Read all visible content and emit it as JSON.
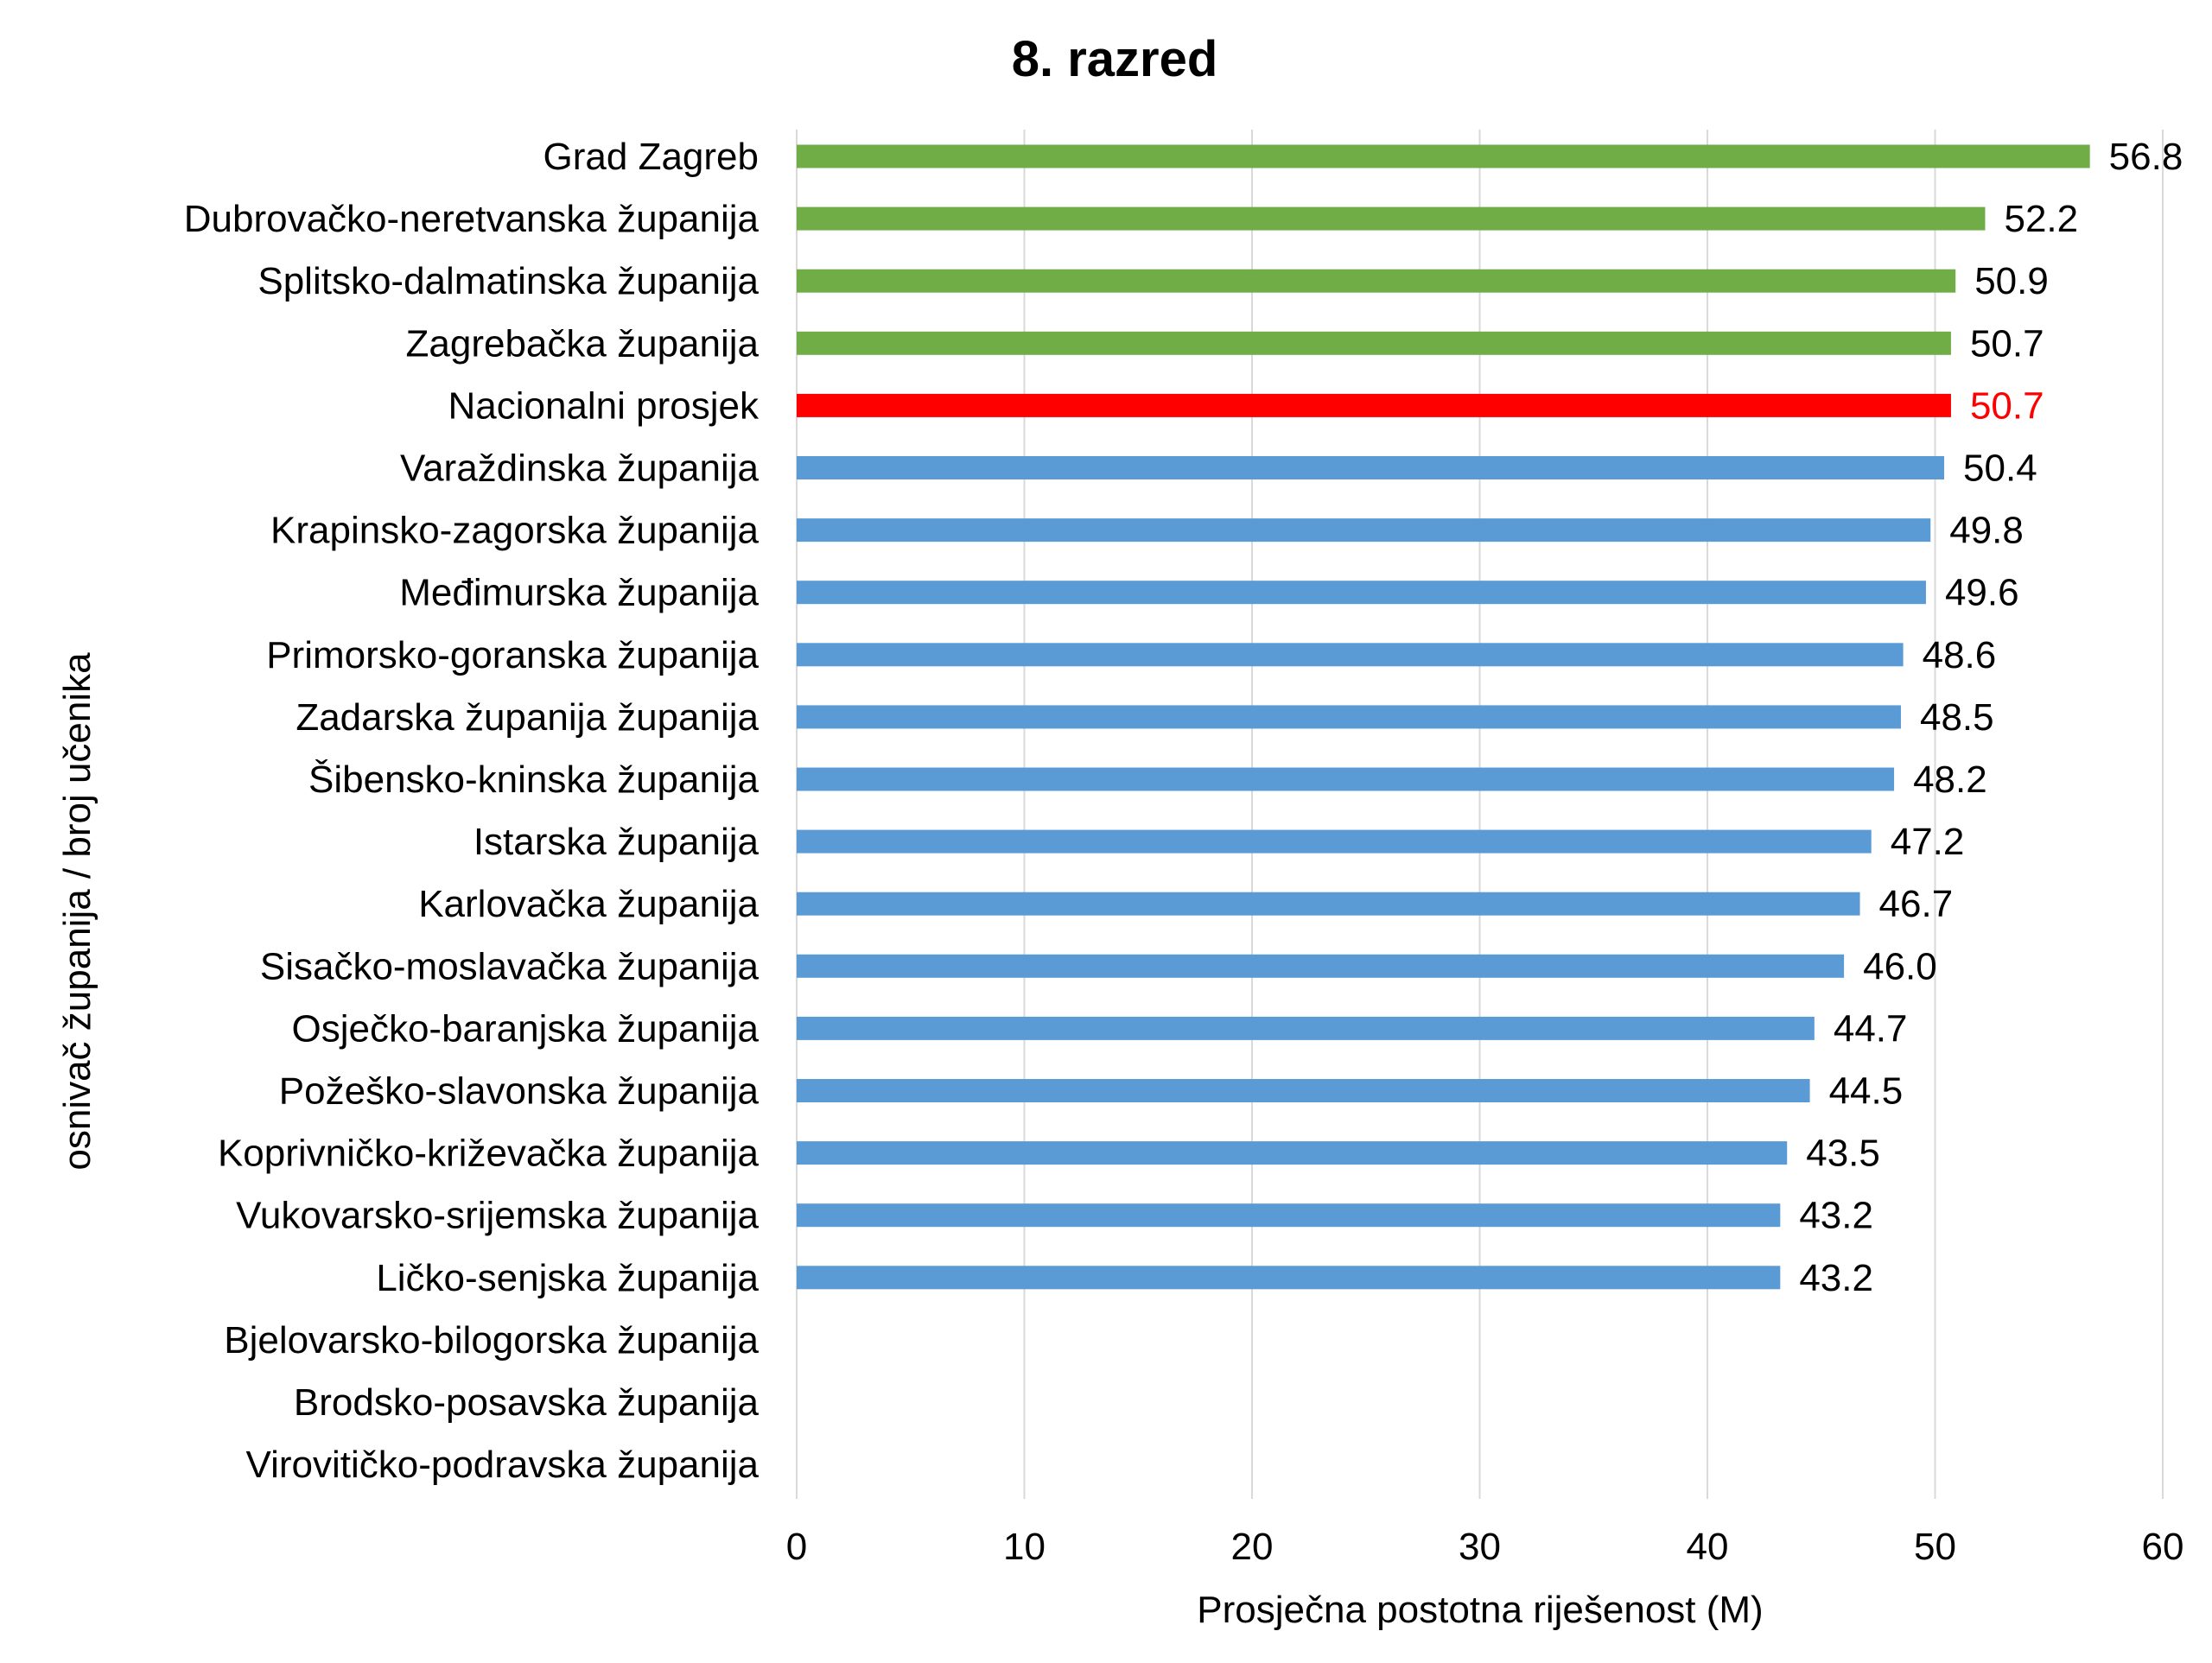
{
  "chart_data": {
    "type": "bar",
    "orientation": "horizontal",
    "title": "8. razred",
    "xlabel": "Prosječna postotna riješenost (M)",
    "ylabel": "osnivač županija / broj učenika",
    "xlim": [
      0,
      60
    ],
    "xticks": [
      0,
      10,
      20,
      30,
      40,
      50,
      60
    ],
    "grid": "vertical",
    "colors": {
      "green": "#70AD47",
      "red": "#FF0000",
      "blue": "#5B9BD5",
      "label_default": "#000000",
      "label_red": "#FF0000",
      "grid": "#D9D9D9"
    },
    "categories": [
      "Grad Zagreb",
      "Dubrovačko-neretvanska županija",
      "Splitsko-dalmatinska županija",
      "Zagrebačka županija",
      "Nacionalni prosjek",
      "Varaždinska županija",
      "Krapinsko-zagorska županija",
      "Međimurska županija",
      "Primorsko-goranska županija",
      "Zadarska županija županija",
      "Šibensko-kninska županija",
      "Istarska županija",
      "Karlovačka županija",
      "Sisačko-moslavačka županija",
      "Osječko-baranjska županija",
      "Požeško-slavonska županija",
      "Koprivničko-križevačka županija",
      "Vukovarsko-srijemska županija",
      "Ličko-senjska županija",
      "Bjelovarsko-bilogorska županija",
      "Brodsko-posavska županija",
      "Virovitičko-podravska županija"
    ],
    "values": [
      56.8,
      52.2,
      50.9,
      50.7,
      50.7,
      50.4,
      49.8,
      49.6,
      48.6,
      48.5,
      48.2,
      47.2,
      46.7,
      46.0,
      44.7,
      44.5,
      43.5,
      43.2,
      43.2,
      null,
      null,
      null
    ],
    "value_labels": [
      "56.8",
      "52.2",
      "50.9",
      "50.7",
      "50.7",
      "50.4",
      "49.8",
      "49.6",
      "48.6",
      "48.5",
      "48.2",
      "47.2",
      "46.7",
      "46.0",
      "44.7",
      "44.5",
      "43.5",
      "43.2",
      "43.2",
      "",
      "",
      ""
    ],
    "bar_colors": [
      "green",
      "green",
      "green",
      "green",
      "red",
      "blue",
      "blue",
      "blue",
      "blue",
      "blue",
      "blue",
      "blue",
      "blue",
      "blue",
      "blue",
      "blue",
      "blue",
      "blue",
      "blue",
      "blue",
      "blue",
      "blue"
    ]
  }
}
